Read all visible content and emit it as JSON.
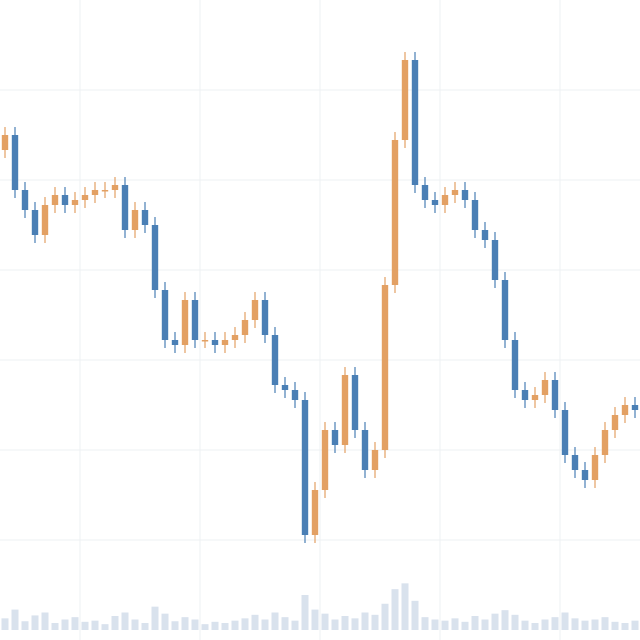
{
  "chart_data": {
    "type": "candlestick",
    "up_color": "#e3a063",
    "down_color": "#4a7fb5",
    "volume_color": "#c9d6e6",
    "ylim": [
      0,
      640
    ],
    "volume_lim": [
      0,
      120
    ],
    "open": [
      490,
      505,
      450,
      430,
      405,
      435,
      445,
      435,
      440,
      445,
      450,
      450,
      455,
      410,
      430,
      415,
      350,
      300,
      295,
      340,
      300,
      300,
      295,
      300,
      305,
      320,
      340,
      305,
      255,
      250,
      240,
      105,
      150,
      210,
      195,
      265,
      210,
      170,
      190,
      355,
      500,
      580,
      455,
      440,
      435,
      445,
      450,
      440,
      410,
      400,
      360,
      300,
      250,
      240,
      245,
      260,
      230,
      185,
      170,
      160,
      185,
      210,
      225,
      235
    ],
    "high": [
      513,
      513,
      458,
      438,
      443,
      453,
      453,
      448,
      453,
      458,
      458,
      463,
      463,
      438,
      438,
      423,
      358,
      308,
      348,
      348,
      308,
      308,
      308,
      313,
      328,
      348,
      348,
      313,
      263,
      258,
      248,
      158,
      218,
      218,
      273,
      273,
      218,
      198,
      363,
      508,
      588,
      588,
      463,
      448,
      453,
      458,
      458,
      448,
      418,
      408,
      368,
      308,
      258,
      253,
      268,
      268,
      238,
      193,
      178,
      193,
      218,
      233,
      243,
      243
    ],
    "low": [
      482,
      442,
      422,
      397,
      397,
      427,
      427,
      427,
      432,
      437,
      442,
      442,
      402,
      402,
      407,
      342,
      292,
      287,
      287,
      292,
      292,
      287,
      287,
      292,
      297,
      312,
      297,
      247,
      242,
      232,
      97,
      97,
      142,
      187,
      187,
      202,
      162,
      162,
      182,
      347,
      492,
      447,
      432,
      427,
      427,
      437,
      432,
      402,
      392,
      352,
      292,
      242,
      232,
      232,
      237,
      222,
      177,
      162,
      152,
      152,
      177,
      202,
      217,
      222
    ],
    "close": [
      505,
      450,
      430,
      405,
      435,
      445,
      435,
      440,
      445,
      450,
      450,
      455,
      410,
      430,
      415,
      350,
      300,
      295,
      340,
      300,
      300,
      295,
      300,
      305,
      320,
      340,
      305,
      255,
      250,
      240,
      105,
      150,
      210,
      195,
      265,
      210,
      170,
      190,
      355,
      500,
      580,
      455,
      440,
      435,
      445,
      450,
      440,
      410,
      400,
      360,
      300,
      250,
      240,
      245,
      260,
      230,
      185,
      170,
      160,
      185,
      210,
      225,
      235,
      230
    ],
    "volume": [
      20,
      35,
      15,
      25,
      30,
      12,
      18,
      22,
      14,
      16,
      10,
      24,
      30,
      18,
      12,
      40,
      28,
      15,
      22,
      18,
      10,
      14,
      12,
      16,
      20,
      26,
      18,
      30,
      22,
      16,
      60,
      35,
      28,
      18,
      24,
      20,
      30,
      26,
      45,
      70,
      80,
      50,
      22,
      18,
      16,
      20,
      14,
      24,
      18,
      28,
      34,
      26,
      16,
      12,
      18,
      22,
      30,
      20,
      16,
      18,
      22,
      14,
      12,
      16
    ]
  }
}
